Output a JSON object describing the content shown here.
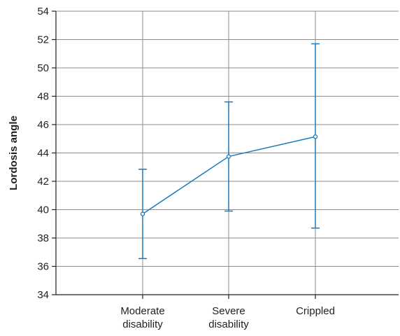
{
  "chart_data": {
    "type": "line",
    "title": "",
    "xlabel": "",
    "ylabel": "Lordosis angle",
    "categories": [
      [
        "Moderate",
        "disability"
      ],
      [
        "Severe",
        "disability"
      ],
      [
        "Crippled"
      ]
    ],
    "series": [
      {
        "values": [
          39.7,
          43.75,
          45.15
        ],
        "error_low": [
          36.55,
          39.9,
          38.7
        ],
        "error_high": [
          42.85,
          47.6,
          51.7
        ],
        "color": "#1a7abf"
      }
    ],
    "ylim": [
      34,
      54
    ],
    "yticks": [
      34,
      36,
      38,
      40,
      42,
      44,
      46,
      48,
      50,
      52,
      54
    ],
    "grid": true,
    "gridColor": "#8c8c8c",
    "axisColor": "#231f20",
    "legend": "none"
  }
}
